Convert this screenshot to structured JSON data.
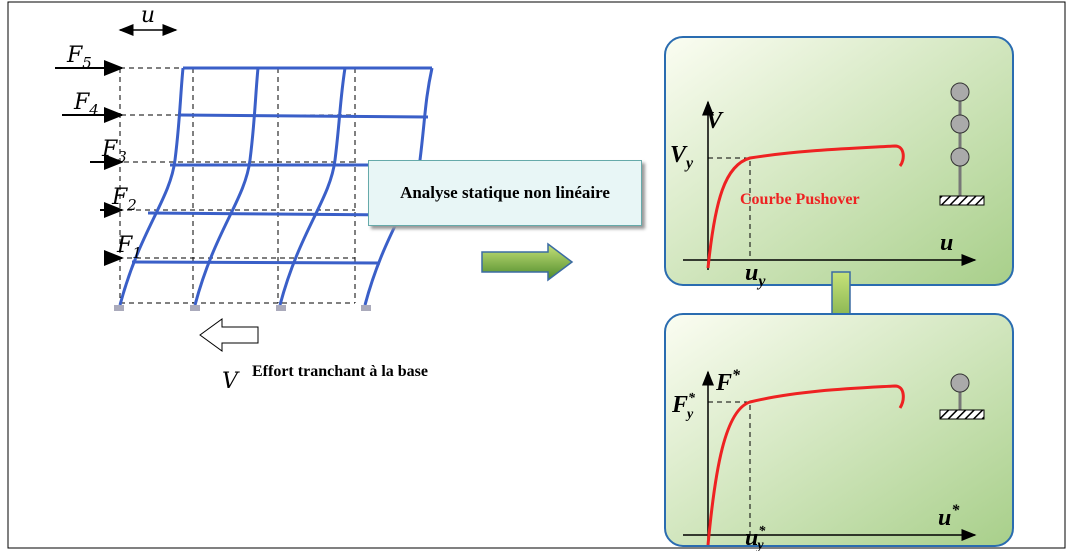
{
  "frame": {
    "displacement": "u",
    "forces": [
      {
        "symbol": "F",
        "index": "5"
      },
      {
        "symbol": "F",
        "index": "4"
      },
      {
        "symbol": "F",
        "index": "3"
      },
      {
        "symbol": "F",
        "index": "2"
      },
      {
        "symbol": "F",
        "index": "1"
      }
    ],
    "base_shear": {
      "symbol": "V",
      "caption": "Effort tranchant à la base"
    }
  },
  "process": {
    "label": "Analyse statique non linéaire"
  },
  "pushover_panel": {
    "y_axis": "V",
    "x_axis": "u",
    "yield_force": {
      "symbol": "V",
      "sub": "y"
    },
    "yield_disp": {
      "symbol": "u",
      "sub": "y"
    },
    "curve_label": "Courbe Pushover"
  },
  "equivalent_panel": {
    "y_axis": {
      "symbol": "F",
      "sup": "*"
    },
    "x_axis": {
      "symbol": "u",
      "sup": "*"
    },
    "yield_force": {
      "symbol": "F",
      "sup": "*",
      "sub": "y"
    },
    "yield_disp": {
      "symbol": "u",
      "sup": "*",
      "sub": "y"
    }
  }
}
